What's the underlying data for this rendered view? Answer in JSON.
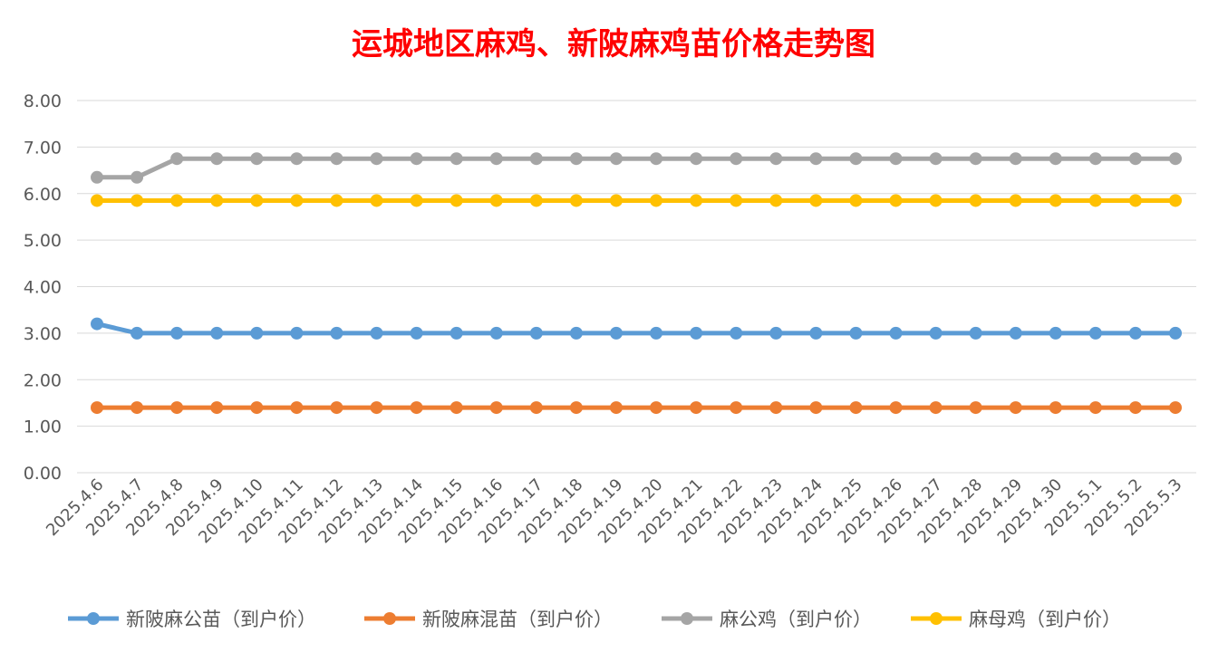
{
  "colors": {
    "background": "#ffffff",
    "grid": "#d9d9d9",
    "title": "#ff0000",
    "text": "#595959"
  },
  "chart_data": {
    "type": "line",
    "title": "运城地区麻鸡、新陂麻鸡苗价格走势图",
    "xlabel": "",
    "ylabel": "",
    "ylim": [
      0,
      8
    ],
    "yticks": [
      "0.00",
      "1.00",
      "2.00",
      "3.00",
      "4.00",
      "5.00",
      "6.00",
      "7.00",
      "8.00"
    ],
    "grid": true,
    "legend_position": "bottom",
    "categories": [
      "2025.4.6",
      "2025.4.7",
      "2025.4.8",
      "2025.4.9",
      "2025.4.10",
      "2025.4.11",
      "2025.4.12",
      "2025.4.13",
      "2025.4.14",
      "2025.4.15",
      "2025.4.16",
      "2025.4.17",
      "2025.4.18",
      "2025.4.19",
      "2025.4.20",
      "2025.4.21",
      "2025.4.22",
      "2025.4.23",
      "2025.4.24",
      "2025.4.25",
      "2025.4.26",
      "2025.4.27",
      "2025.4.28",
      "2025.4.29",
      "2025.4.30",
      "2025.5.1",
      "2025.5.2",
      "2025.5.3"
    ],
    "series": [
      {
        "name": "新陂麻公苗（到户价）",
        "color": "#5b9bd5",
        "values": [
          3.2,
          3.0,
          3.0,
          3.0,
          3.0,
          3.0,
          3.0,
          3.0,
          3.0,
          3.0,
          3.0,
          3.0,
          3.0,
          3.0,
          3.0,
          3.0,
          3.0,
          3.0,
          3.0,
          3.0,
          3.0,
          3.0,
          3.0,
          3.0,
          3.0,
          3.0,
          3.0,
          3.0
        ]
      },
      {
        "name": "新陂麻混苗（到户价）",
        "color": "#ed7d31",
        "values": [
          1.4,
          1.4,
          1.4,
          1.4,
          1.4,
          1.4,
          1.4,
          1.4,
          1.4,
          1.4,
          1.4,
          1.4,
          1.4,
          1.4,
          1.4,
          1.4,
          1.4,
          1.4,
          1.4,
          1.4,
          1.4,
          1.4,
          1.4,
          1.4,
          1.4,
          1.4,
          1.4,
          1.4
        ]
      },
      {
        "name": "麻公鸡（到户价）",
        "color": "#a5a5a5",
        "values": [
          6.35,
          6.35,
          6.75,
          6.75,
          6.75,
          6.75,
          6.75,
          6.75,
          6.75,
          6.75,
          6.75,
          6.75,
          6.75,
          6.75,
          6.75,
          6.75,
          6.75,
          6.75,
          6.75,
          6.75,
          6.75,
          6.75,
          6.75,
          6.75,
          6.75,
          6.75,
          6.75,
          6.75
        ]
      },
      {
        "name": "麻母鸡（到户价）",
        "color": "#ffc000",
        "values": [
          5.85,
          5.85,
          5.85,
          5.85,
          5.85,
          5.85,
          5.85,
          5.85,
          5.85,
          5.85,
          5.85,
          5.85,
          5.85,
          5.85,
          5.85,
          5.85,
          5.85,
          5.85,
          5.85,
          5.85,
          5.85,
          5.85,
          5.85,
          5.85,
          5.85,
          5.85,
          5.85,
          5.85
        ]
      }
    ]
  }
}
